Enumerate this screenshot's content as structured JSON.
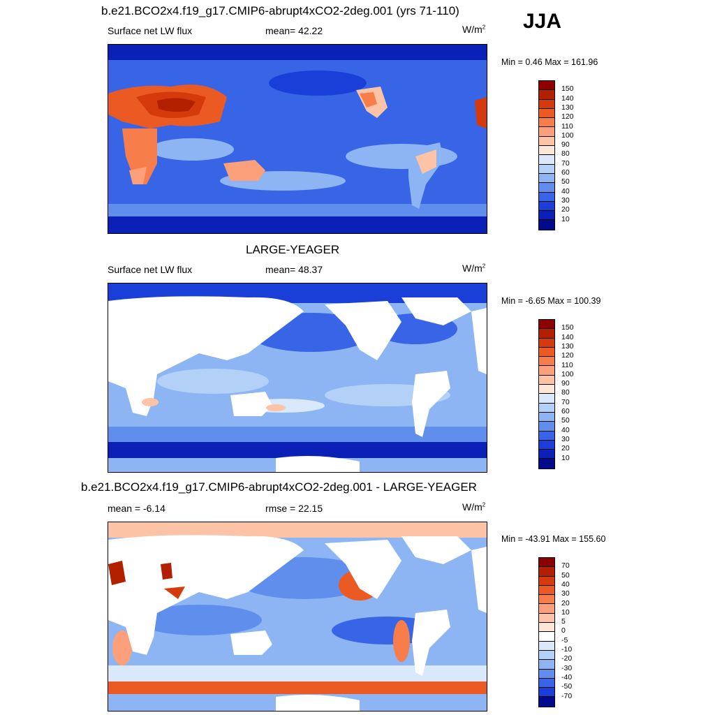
{
  "season": "JJA",
  "panels": [
    {
      "title": "b.e21.BCO2x4.f19_g17.CMIP6-abrupt4xCO2-2deg.001 (yrs 71-110)",
      "left_label": "Surface net LW flux",
      "center_label": "mean=  42.22",
      "units_base": "W/m",
      "units_exp": "2",
      "minmax": "Min =   0.46 Max = 161.96",
      "colorbar": {
        "labels": [
          "150",
          "140",
          "130",
          "120",
          "110",
          "100",
          "90",
          "80",
          "70",
          "60",
          "50",
          "40",
          "30",
          "20",
          "10"
        ],
        "colors": [
          "#8b0000",
          "#b22000",
          "#d43a0c",
          "#ec5a24",
          "#f77e4a",
          "#fba07a",
          "#fdc3a6",
          "#fde6d6",
          "#d9e8fb",
          "#b3d0f7",
          "#8db5f3",
          "#5f8eec",
          "#3865e6",
          "#1a3fd9",
          "#0a20b6",
          "#000a8a"
        ]
      },
      "land_masked": false
    },
    {
      "title": "LARGE-YEAGER",
      "left_label": "Surface net LW flux",
      "center_label": "mean=  48.37",
      "units_base": "W/m",
      "units_exp": "2",
      "minmax": "Min =  -6.65 Max = 100.39",
      "colorbar": {
        "labels": [
          "150",
          "140",
          "130",
          "120",
          "110",
          "100",
          "90",
          "80",
          "70",
          "60",
          "50",
          "40",
          "30",
          "20",
          "10"
        ],
        "colors": [
          "#8b0000",
          "#b22000",
          "#d43a0c",
          "#ec5a24",
          "#f77e4a",
          "#fba07a",
          "#fdc3a6",
          "#fde6d6",
          "#d9e8fb",
          "#b3d0f7",
          "#8db5f3",
          "#5f8eec",
          "#3865e6",
          "#1a3fd9",
          "#0a20b6",
          "#000a8a"
        ]
      },
      "land_masked": true
    },
    {
      "title": "b.e21.BCO2x4.f19_g17.CMIP6-abrupt4xCO2-2deg.001 - LARGE-YEAGER",
      "left_label": "mean =  -6.14",
      "center_label": "rmse =  22.15",
      "units_base": "W/m",
      "units_exp": "2",
      "minmax": "Min = -43.91 Max = 155.60",
      "colorbar": {
        "labels": [
          "70",
          "50",
          "40",
          "30",
          "20",
          "10",
          "5",
          "0",
          "-5",
          "-10",
          "-20",
          "-30",
          "-40",
          "-50",
          "-70"
        ],
        "colors": [
          "#8b0000",
          "#b22000",
          "#d43a0c",
          "#ec5a24",
          "#f77e4a",
          "#fba07a",
          "#fdc3a6",
          "#fde6d6",
          "#ffffff",
          "#d9e8fb",
          "#b3d0f7",
          "#8db5f3",
          "#5f8eec",
          "#3865e6",
          "#1a3fd9",
          "#000a8a"
        ]
      },
      "land_masked": true
    }
  ]
}
